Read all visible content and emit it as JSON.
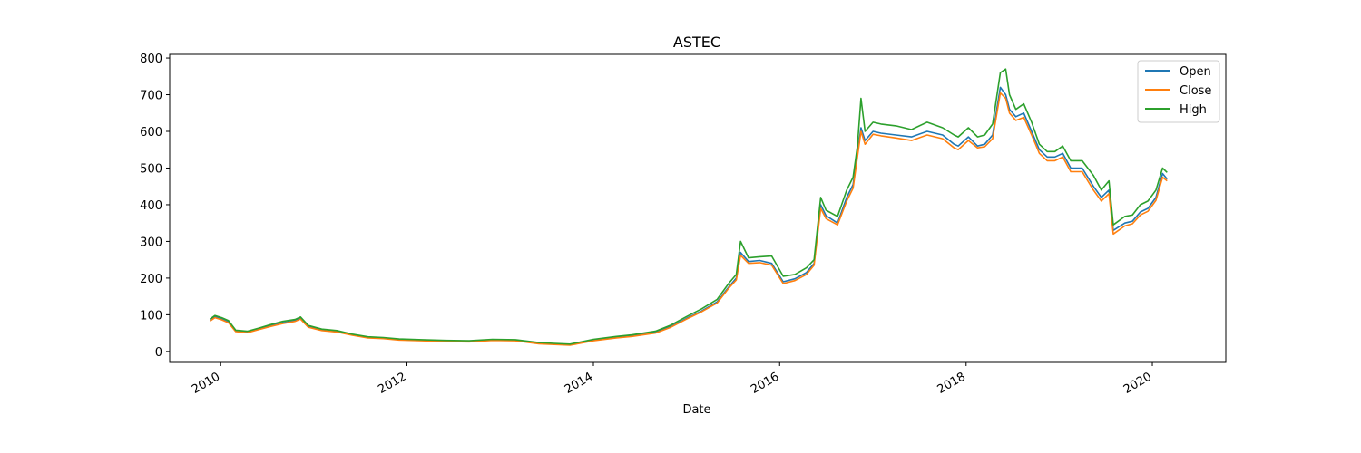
{
  "chart_data": {
    "type": "line",
    "title": "ASTEC",
    "xlabel": "Date",
    "ylabel": "",
    "x_axis_type": "date",
    "xlim": [
      "2009-06-15",
      "2020-10-15"
    ],
    "ylim": [
      -30,
      810
    ],
    "xticks": [
      {
        "date": "2010-01-01",
        "label": "2010"
      },
      {
        "date": "2012-01-01",
        "label": "2012"
      },
      {
        "date": "2014-01-01",
        "label": "2014"
      },
      {
        "date": "2016-01-01",
        "label": "2016"
      },
      {
        "date": "2018-01-01",
        "label": "2018"
      },
      {
        "date": "2020-01-01",
        "label": "2020"
      }
    ],
    "yticks": [
      0,
      100,
      200,
      300,
      400,
      500,
      600,
      700,
      800
    ],
    "grid": false,
    "legend_position": "top-right",
    "series": [
      {
        "name": "Open",
        "color": "#1f77b4"
      },
      {
        "name": "Close",
        "color": "#ff7f0e"
      },
      {
        "name": "High",
        "color": "#2ca02c"
      }
    ],
    "x": [
      "2009-11-20",
      "2009-12-10",
      "2010-01-05",
      "2010-02-01",
      "2010-03-01",
      "2010-04-15",
      "2010-06-01",
      "2010-07-15",
      "2010-09-01",
      "2010-10-20",
      "2010-11-10",
      "2010-12-10",
      "2011-02-01",
      "2011-04-01",
      "2011-06-01",
      "2011-08-01",
      "2011-10-01",
      "2011-12-01",
      "2012-03-01",
      "2012-06-01",
      "2012-09-01",
      "2012-12-01",
      "2013-03-01",
      "2013-06-01",
      "2013-08-01",
      "2013-10-01",
      "2014-01-01",
      "2014-04-01",
      "2014-06-01",
      "2014-09-01",
      "2014-11-01",
      "2015-01-01",
      "2015-03-01",
      "2015-05-01",
      "2015-06-15",
      "2015-07-15",
      "2015-08-01",
      "2015-09-01",
      "2015-10-15",
      "2015-12-01",
      "2016-01-15",
      "2016-03-01",
      "2016-04-15",
      "2016-05-15",
      "2016-06-10",
      "2016-07-01",
      "2016-08-15",
      "2016-09-20",
      "2016-10-15",
      "2016-11-01",
      "2016-11-15",
      "2016-12-01",
      "2017-01-01",
      "2017-02-01",
      "2017-04-01",
      "2017-06-01",
      "2017-08-01",
      "2017-10-01",
      "2017-11-15",
      "2017-12-01",
      "2018-01-10",
      "2018-02-15",
      "2018-03-15",
      "2018-04-15",
      "2018-05-15",
      "2018-06-05",
      "2018-06-20",
      "2018-07-15",
      "2018-08-15",
      "2018-09-15",
      "2018-10-15",
      "2018-11-15",
      "2018-12-15",
      "2019-01-15",
      "2019-02-15",
      "2019-04-01",
      "2019-05-15",
      "2019-06-15",
      "2019-07-15",
      "2019-08-01",
      "2019-09-15",
      "2019-10-15",
      "2019-11-15",
      "2019-12-15",
      "2020-01-15",
      "2020-02-10",
      "2020-02-28"
    ],
    "open": [
      85,
      95,
      88,
      80,
      55,
      52,
      62,
      70,
      78,
      84,
      90,
      68,
      58,
      54,
      45,
      38,
      36,
      32,
      30,
      28,
      27,
      31,
      30,
      22,
      20,
      18,
      30,
      38,
      42,
      52,
      68,
      90,
      110,
      135,
      175,
      200,
      270,
      245,
      248,
      240,
      190,
      198,
      215,
      240,
      400,
      370,
      350,
      420,
      455,
      540,
      610,
      575,
      600,
      595,
      590,
      585,
      600,
      590,
      565,
      560,
      585,
      560,
      565,
      590,
      720,
      700,
      660,
      640,
      650,
      600,
      550,
      530,
      530,
      540,
      500,
      500,
      450,
      420,
      440,
      330,
      350,
      355,
      380,
      390,
      420,
      485,
      470
    ],
    "close": [
      83,
      92,
      86,
      78,
      54,
      51,
      60,
      68,
      76,
      82,
      88,
      66,
      57,
      53,
      44,
      37,
      35,
      31,
      29,
      27,
      26,
      30,
      29,
      21,
      19,
      17,
      29,
      37,
      41,
      50,
      66,
      88,
      108,
      132,
      172,
      195,
      262,
      240,
      242,
      235,
      185,
      193,
      210,
      235,
      390,
      362,
      345,
      410,
      445,
      530,
      600,
      565,
      592,
      588,
      582,
      575,
      590,
      580,
      555,
      550,
      575,
      555,
      558,
      580,
      705,
      690,
      650,
      630,
      638,
      590,
      540,
      520,
      520,
      530,
      490,
      490,
      440,
      410,
      430,
      320,
      342,
      348,
      372,
      382,
      412,
      475,
      465
    ],
    "high": [
      88,
      98,
      92,
      84,
      58,
      55,
      64,
      73,
      82,
      87,
      94,
      71,
      61,
      57,
      47,
      40,
      38,
      34,
      32,
      30,
      29,
      33,
      32,
      24,
      22,
      20,
      33,
      41,
      45,
      55,
      72,
      95,
      116,
      142,
      185,
      210,
      300,
      255,
      258,
      260,
      205,
      210,
      228,
      250,
      420,
      385,
      368,
      440,
      475,
      560,
      690,
      600,
      625,
      620,
      615,
      605,
      625,
      610,
      590,
      585,
      610,
      585,
      590,
      620,
      760,
      770,
      700,
      660,
      675,
      625,
      565,
      545,
      545,
      560,
      520,
      520,
      480,
      440,
      465,
      345,
      368,
      372,
      400,
      410,
      440,
      500,
      488
    ]
  }
}
